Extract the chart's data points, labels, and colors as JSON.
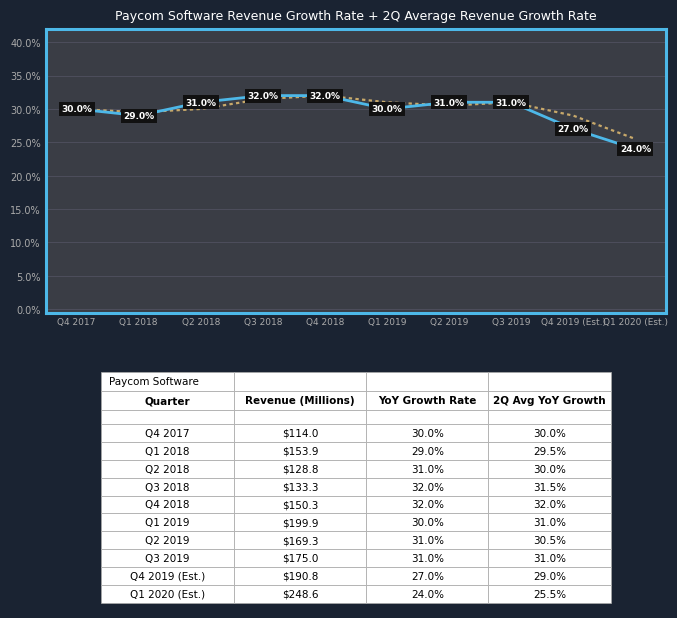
{
  "quarters": [
    "Q4 2017",
    "Q1 2018",
    "Q2 2018",
    "Q3 2018",
    "Q4 2018",
    "Q1 2019",
    "Q2 2019",
    "Q3 2019",
    "Q4 2019 (Est.)",
    "Q1 2020 (Est.)"
  ],
  "yoy_growth": [
    30.0,
    29.0,
    31.0,
    32.0,
    32.0,
    30.0,
    31.0,
    31.0,
    27.0,
    24.0
  ],
  "avg_2q_growth": [
    30.0,
    29.5,
    30.0,
    31.5,
    32.0,
    31.0,
    30.5,
    31.0,
    29.0,
    25.5
  ],
  "revenue": [
    "$114.0",
    "$153.9",
    "$128.8",
    "$133.3",
    "$150.3",
    "$199.9",
    "$169.3",
    "$175.0",
    "$190.8",
    "$248.6"
  ],
  "yoy_growth_str": [
    "30.0%",
    "29.0%",
    "31.0%",
    "32.0%",
    "32.0%",
    "30.0%",
    "31.0%",
    "31.0%",
    "27.0%",
    "24.0%"
  ],
  "avg_2q_growth_str": [
    "30.0%",
    "29.5%",
    "30.0%",
    "31.5%",
    "32.0%",
    "31.0%",
    "30.5%",
    "31.0%",
    "29.0%",
    "25.5%"
  ],
  "chart_title": "Paycom Software Revenue Growth Rate + 2Q Average Revenue Growth Rate",
  "chart_bg": "#3a3d45",
  "chart_border": "#4db8e8",
  "line1_color": "#4db8e8",
  "line2_color": "#c8a96a",
  "label_bg": "#111111",
  "label_text": "#ffffff",
  "grid_color": "#555566",
  "tick_color": "#aaaaaa",
  "title_color": "#ffffff",
  "yticks": [
    0.0,
    5.0,
    10.0,
    15.0,
    20.0,
    25.0,
    30.0,
    35.0,
    40.0
  ],
  "outer_bg": "#1a2332",
  "table_border": "#aaaaaa",
  "table_text": "#000000",
  "col_labels": [
    "Quarter",
    "Revenue (Millions)",
    "YoY Growth Rate",
    "2Q Avg YoY Growth"
  ]
}
